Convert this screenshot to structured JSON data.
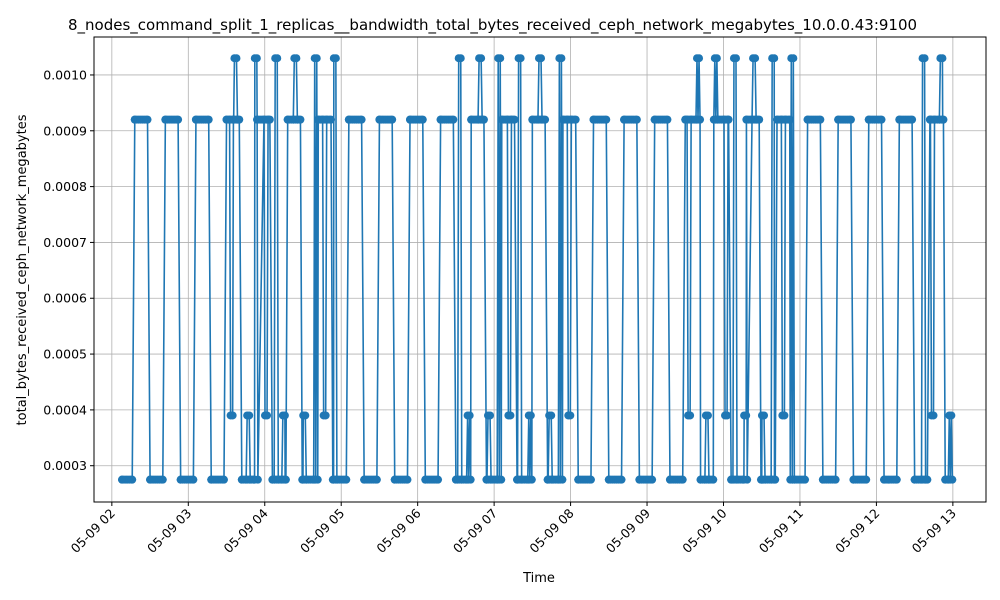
{
  "chart_data": {
    "type": "line",
    "title": "8_nodes_command_split_1_replicas__bandwidth_total_bytes_received_ceph_network_megabytes_10.0.0.43:9100",
    "xlabel": "Time",
    "ylabel": "total_bytes_received_ceph_network_megabytes",
    "x_ticks": [
      "05-09 02",
      "05-09 03",
      "05-09 04",
      "05-09 05",
      "05-09 06",
      "05-09 07",
      "05-09 08",
      "05-09 09",
      "05-09 10",
      "05-09 11",
      "05-09 12",
      "05-09 13"
    ],
    "y_ticks": [
      "0.0003",
      "0.0004",
      "0.0005",
      "0.0006",
      "0.0007",
      "0.0008",
      "0.0009",
      "0.0010"
    ],
    "xlim": [
      "05-09 01:46",
      "05-09 13:26"
    ],
    "ylim": [
      0.000235,
      0.001068
    ],
    "grid": true,
    "legend": "none",
    "series": [
      {
        "color": "#1f77b4",
        "points": [
          [
            "05-09 02:08",
            0.000275
          ],
          [
            "05-09 02:16",
            0.000275
          ],
          [
            "05-09 02:18",
            0.00092
          ],
          [
            "05-09 02:28",
            0.00092
          ],
          [
            "05-09 02:30",
            0.000275
          ],
          [
            "05-09 02:40",
            0.000275
          ],
          [
            "05-09 02:42",
            0.00092
          ],
          [
            "05-09 02:52",
            0.00092
          ],
          [
            "05-09 02:54",
            0.000275
          ],
          [
            "05-09 03:04",
            0.000275
          ],
          [
            "05-09 03:06",
            0.00092
          ],
          [
            "05-09 03:16",
            0.00092
          ],
          [
            "05-09 03:18",
            0.000275
          ],
          [
            "05-09 03:28",
            0.000275
          ],
          [
            "05-09 03:30",
            0.00092
          ],
          [
            "05-09 03:40",
            0.00092
          ],
          [
            "05-09 03:42",
            0.000275
          ],
          [
            "05-09 03:52",
            0.000275
          ],
          [
            "05-09 03:54",
            0.00092
          ],
          [
            "05-09 04:04",
            0.00092
          ],
          [
            "05-09 04:06",
            0.000275
          ],
          [
            "05-09 04:16",
            0.000275
          ],
          [
            "05-09 04:18",
            0.00092
          ],
          [
            "05-09 04:28",
            0.00092
          ],
          [
            "05-09 04:30",
            0.000275
          ],
          [
            "05-09 04:40",
            0.000275
          ],
          [
            "05-09 04:42",
            0.00092
          ],
          [
            "05-09 04:52",
            0.00092
          ],
          [
            "05-09 04:54",
            0.000275
          ],
          [
            "05-09 05:04",
            0.000275
          ],
          [
            "05-09 05:06",
            0.00092
          ],
          [
            "05-09 05:16",
            0.00092
          ],
          [
            "05-09 05:18",
            0.000275
          ],
          [
            "05-09 05:28",
            0.000275
          ],
          [
            "05-09 05:30",
            0.00092
          ],
          [
            "05-09 05:40",
            0.00092
          ],
          [
            "05-09 05:42",
            0.000275
          ],
          [
            "05-09 05:52",
            0.000275
          ],
          [
            "05-09 05:54",
            0.00092
          ],
          [
            "05-09 06:04",
            0.00092
          ],
          [
            "05-09 06:06",
            0.000275
          ],
          [
            "05-09 06:16",
            0.000275
          ],
          [
            "05-09 06:18",
            0.00092
          ],
          [
            "05-09 06:28",
            0.00092
          ],
          [
            "05-09 06:30",
            0.000275
          ],
          [
            "05-09 06:40",
            0.000275
          ],
          [
            "05-09 06:42",
            0.00092
          ],
          [
            "05-09 06:52",
            0.00092
          ],
          [
            "05-09 06:54",
            0.000275
          ],
          [
            "05-09 07:04",
            0.000275
          ],
          [
            "05-09 07:06",
            0.00092
          ],
          [
            "05-09 07:16",
            0.00092
          ],
          [
            "05-09 07:18",
            0.000275
          ],
          [
            "05-09 07:28",
            0.000275
          ],
          [
            "05-09 07:30",
            0.00092
          ],
          [
            "05-09 07:40",
            0.00092
          ],
          [
            "05-09 07:42",
            0.000275
          ],
          [
            "05-09 07:52",
            0.000275
          ],
          [
            "05-09 07:54",
            0.00092
          ],
          [
            "05-09 08:04",
            0.00092
          ],
          [
            "05-09 08:06",
            0.000275
          ],
          [
            "05-09 08:16",
            0.000275
          ],
          [
            "05-09 08:18",
            0.00092
          ],
          [
            "05-09 08:28",
            0.00092
          ],
          [
            "05-09 08:30",
            0.000275
          ],
          [
            "05-09 08:40",
            0.000275
          ],
          [
            "05-09 08:42",
            0.00092
          ],
          [
            "05-09 08:52",
            0.00092
          ],
          [
            "05-09 08:54",
            0.000275
          ],
          [
            "05-09 09:04",
            0.000275
          ],
          [
            "05-09 09:06",
            0.00092
          ],
          [
            "05-09 09:16",
            0.00092
          ],
          [
            "05-09 09:18",
            0.000275
          ],
          [
            "05-09 09:28",
            0.000275
          ],
          [
            "05-09 09:30",
            0.00092
          ],
          [
            "05-09 09:40",
            0.00092
          ],
          [
            "05-09 09:42",
            0.000275
          ],
          [
            "05-09 09:52",
            0.000275
          ],
          [
            "05-09 09:54",
            0.00092
          ],
          [
            "05-09 10:04",
            0.00092
          ],
          [
            "05-09 10:06",
            0.000275
          ],
          [
            "05-09 10:16",
            0.000275
          ],
          [
            "05-09 10:18",
            0.00092
          ],
          [
            "05-09 10:28",
            0.00092
          ],
          [
            "05-09 10:30",
            0.000275
          ],
          [
            "05-09 10:40",
            0.000275
          ],
          [
            "05-09 10:42",
            0.00092
          ],
          [
            "05-09 10:52",
            0.00092
          ],
          [
            "05-09 10:54",
            0.000275
          ],
          [
            "05-09 11:04",
            0.000275
          ],
          [
            "05-09 11:06",
            0.00092
          ],
          [
            "05-09 11:16",
            0.00092
          ],
          [
            "05-09 11:18",
            0.000275
          ],
          [
            "05-09 11:28",
            0.000275
          ],
          [
            "05-09 11:30",
            0.00092
          ],
          [
            "05-09 11:40",
            0.00092
          ],
          [
            "05-09 11:42",
            0.000275
          ],
          [
            "05-09 11:52",
            0.000275
          ],
          [
            "05-09 11:54",
            0.00092
          ],
          [
            "05-09 12:04",
            0.00092
          ],
          [
            "05-09 12:06",
            0.000275
          ],
          [
            "05-09 12:16",
            0.000275
          ],
          [
            "05-09 12:18",
            0.00092
          ],
          [
            "05-09 12:28",
            0.00092
          ],
          [
            "05-09 12:30",
            0.000275
          ],
          [
            "05-09 12:40",
            0.000275
          ],
          [
            "05-09 12:42",
            0.00092
          ],
          [
            "05-09 12:52",
            0.00092
          ],
          [
            "05-09 12:54",
            0.000275
          ],
          [
            "05-09 12:58",
            0.000275
          ]
        ],
        "bursts": [
          {
            "x": "05-09 03:34",
            "value": 0.00039
          },
          {
            "x": "05-09 03:37",
            "value": 0.00103
          },
          {
            "x": "05-09 03:47",
            "value": 0.00039
          },
          {
            "x": "05-09 03:53",
            "value": 0.00103
          },
          {
            "x": "05-09 04:01",
            "value": 0.00039
          },
          {
            "x": "05-09 04:09",
            "value": 0.00103
          },
          {
            "x": "05-09 04:15",
            "value": 0.00039
          },
          {
            "x": "05-09 04:24",
            "value": 0.00103
          },
          {
            "x": "05-09 04:31",
            "value": 0.00039
          },
          {
            "x": "05-09 04:40",
            "value": 0.00103
          },
          {
            "x": "05-09 04:47",
            "value": 0.00039
          },
          {
            "x": "05-09 04:55",
            "value": 0.00103
          },
          {
            "x": "05-09 06:33",
            "value": 0.00103
          },
          {
            "x": "05-09 06:40",
            "value": 0.00039
          },
          {
            "x": "05-09 06:49",
            "value": 0.00103
          },
          {
            "x": "05-09 06:56",
            "value": 0.00039
          },
          {
            "x": "05-09 07:04",
            "value": 0.00103
          },
          {
            "x": "05-09 07:12",
            "value": 0.00039
          },
          {
            "x": "05-09 07:20",
            "value": 0.00103
          },
          {
            "x": "05-09 07:28",
            "value": 0.00039
          },
          {
            "x": "05-09 07:36",
            "value": 0.00103
          },
          {
            "x": "05-09 07:44",
            "value": 0.00039
          },
          {
            "x": "05-09 07:52",
            "value": 0.00103
          },
          {
            "x": "05-09 07:59",
            "value": 0.00039
          },
          {
            "x": "05-09 09:33",
            "value": 0.00039
          },
          {
            "x": "05-09 09:40",
            "value": 0.00103
          },
          {
            "x": "05-09 09:47",
            "value": 0.00039
          },
          {
            "x": "05-09 09:54",
            "value": 0.00103
          },
          {
            "x": "05-09 10:02",
            "value": 0.00039
          },
          {
            "x": "05-09 10:09",
            "value": 0.00103
          },
          {
            "x": "05-09 10:17",
            "value": 0.00039
          },
          {
            "x": "05-09 10:24",
            "value": 0.00103
          },
          {
            "x": "05-09 10:31",
            "value": 0.00039
          },
          {
            "x": "05-09 10:39",
            "value": 0.00103
          },
          {
            "x": "05-09 10:47",
            "value": 0.00039
          },
          {
            "x": "05-09 10:54",
            "value": 0.00103
          },
          {
            "x": "05-09 12:37",
            "value": 0.00103
          },
          {
            "x": "05-09 12:44",
            "value": 0.00039
          },
          {
            "x": "05-09 12:51",
            "value": 0.00103
          },
          {
            "x": "05-09 12:58",
            "value": 0.00039
          }
        ]
      }
    ]
  }
}
